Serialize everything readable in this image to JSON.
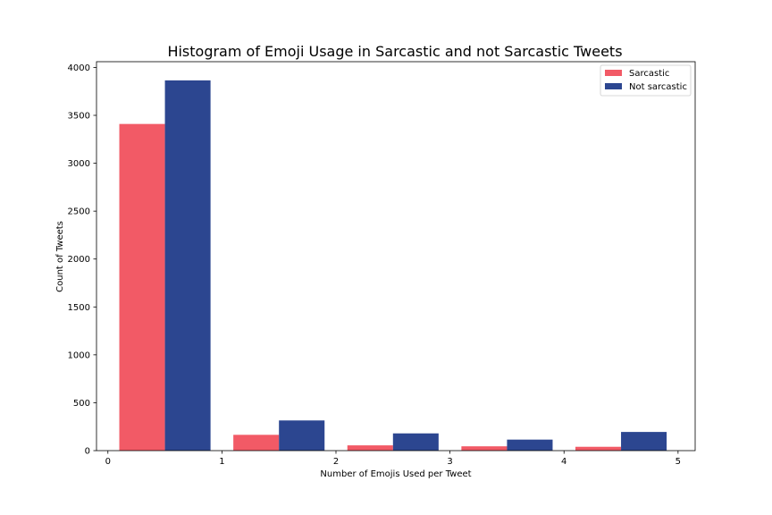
{
  "chart_data": {
    "type": "bar",
    "title": "Histogram of Emoji Usage in Sarcastic and not Sarcastic Tweets",
    "xlabel": "Number of Emojis Used per Tweet",
    "ylabel": "Count of Tweets",
    "xlim": [
      -0.1,
      5.15
    ],
    "ylim": [
      0,
      4060
    ],
    "x_ticks": [
      0,
      1,
      2,
      3,
      4,
      5
    ],
    "y_ticks": [
      0,
      500,
      1000,
      1500,
      2000,
      2500,
      3000,
      3500,
      4000
    ],
    "bin_edges": [
      0.1,
      0.9,
      1.1,
      1.9,
      2.1,
      2.9,
      3.1,
      3.9,
      4.1,
      4.9
    ],
    "grid": false,
    "legend_position": "top-right",
    "series": [
      {
        "name": "Sarcastic",
        "color": "#f25a66",
        "values": [
          3410,
          165,
          55,
          45,
          40
        ]
      },
      {
        "name": "Not sarcastic",
        "color": "#2c4690",
        "values": [
          3865,
          315,
          180,
          115,
          195
        ]
      }
    ]
  }
}
